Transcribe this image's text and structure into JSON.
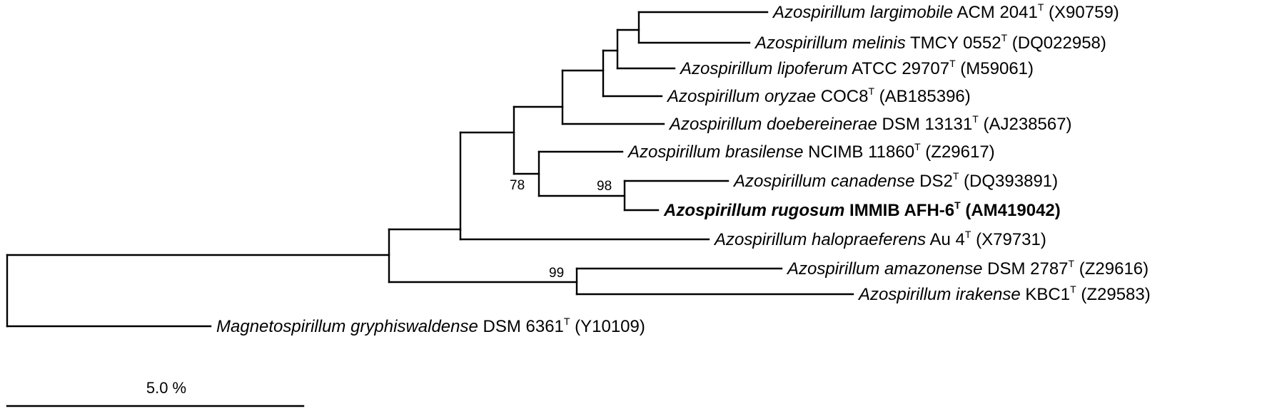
{
  "taxa": [
    {
      "id": "largimobile",
      "genus": "Azospirillum largimobile",
      "strain": "ACM 2041",
      "type_mark": "T",
      "accession": "(X90759)",
      "bold": false
    },
    {
      "id": "melinis",
      "genus": "Azospirillum melinis",
      "strain": "TMCY 0552",
      "type_mark": "T",
      "accession": "(DQ022958)",
      "bold": false
    },
    {
      "id": "lipoferum",
      "genus": "Azospirillum lipoferum",
      "strain": "ATCC 29707",
      "type_mark": "T",
      "accession": "(M59061)",
      "bold": false
    },
    {
      "id": "oryzae",
      "genus": "Azospirillum oryzae",
      "strain": "COC8",
      "type_mark": "T",
      "accession": "(AB185396)",
      "bold": false
    },
    {
      "id": "doebereinerae",
      "genus": "Azospirillum doebereinerae",
      "strain": "DSM 13131",
      "type_mark": "T",
      "accession": "(AJ238567)",
      "bold": false
    },
    {
      "id": "brasilense",
      "genus": "Azospirillum brasilense",
      "strain": "NCIMB 11860",
      "type_mark": "T",
      "accession": "(Z29617)",
      "bold": false
    },
    {
      "id": "canadense",
      "genus": "Azospirillum canadense",
      "strain": "DS2",
      "type_mark": "T",
      "accession": "(DQ393891)",
      "bold": false
    },
    {
      "id": "rugosum",
      "genus": "Azospirillum rugosum",
      "strain": "IMMIB AFH-6",
      "type_mark": "T",
      "accession": "(AM419042)",
      "bold": true
    },
    {
      "id": "halopraeferens",
      "genus": "Azospirillum halopraeferens",
      "strain": "Au 4",
      "type_mark": "T",
      "accession": "(X79731)",
      "bold": false
    },
    {
      "id": "amazonense",
      "genus": "Azospirillum amazonense",
      "strain": "DSM 2787",
      "type_mark": "T",
      "accession": "(Z29616)",
      "bold": false
    },
    {
      "id": "irakense",
      "genus": "Azospirillum irakense",
      "strain": "KBC1",
      "type_mark": "T",
      "accession": "(Z29583)",
      "bold": false
    },
    {
      "id": "gryphiswaldense",
      "genus": "Magnetospirillum gryphiswaldense",
      "strain": "DSM 6361",
      "type_mark": "T",
      "accession": "(Y10109)",
      "bold": false
    }
  ],
  "bootstrap": {
    "brasilense_clade": "78",
    "canadense_rugosum": "98",
    "amazonense_irakense": "99"
  },
  "scale_bar": {
    "label": "5.0 %"
  }
}
